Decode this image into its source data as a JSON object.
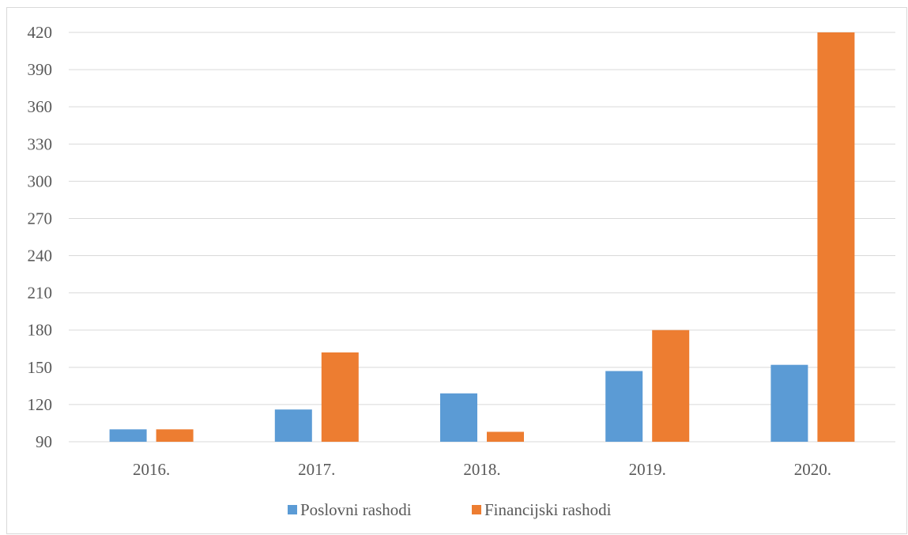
{
  "chart_data": {
    "type": "bar",
    "title": "",
    "xlabel": "",
    "ylabel": "",
    "categories": [
      "2016.",
      "2017.",
      "2018.",
      "2019.",
      "2020."
    ],
    "series": [
      {
        "name": "Poslovni rashodi",
        "color": "#5b9bd5",
        "values": [
          100,
          116,
          129,
          147,
          152
        ]
      },
      {
        "name": "Financijski rashodi",
        "color": "#ed7d31",
        "values": [
          100,
          162,
          98,
          180,
          420
        ]
      }
    ],
    "ylim": [
      90,
      420
    ],
    "yticks": [
      90,
      120,
      150,
      180,
      210,
      240,
      270,
      300,
      330,
      360,
      390,
      420
    ],
    "grid": true,
    "legend_position": "bottom"
  }
}
